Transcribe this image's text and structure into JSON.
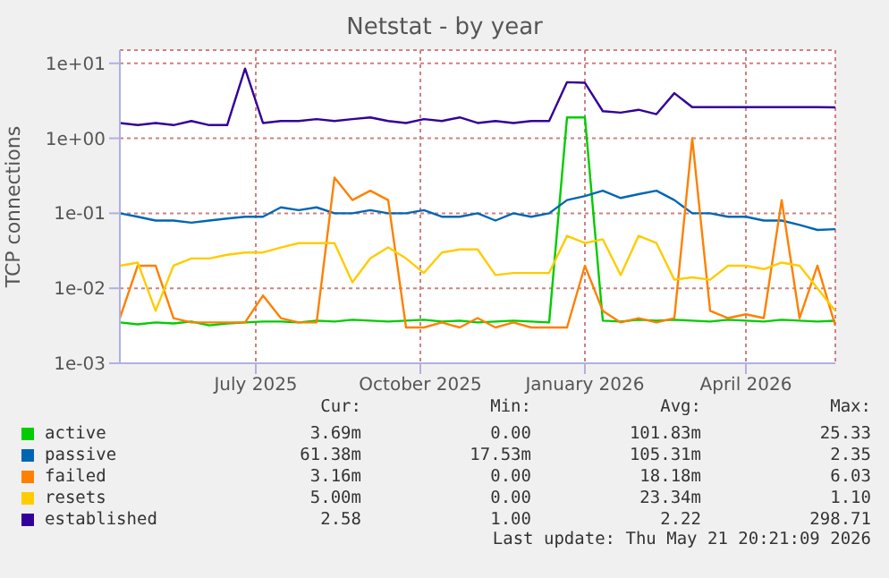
{
  "chart_data": {
    "type": "line",
    "title": "Netstat - by year",
    "ylabel": "TCP connections",
    "log": "y",
    "grid": true,
    "legend": "bottom",
    "x": [
      "2025-04-16",
      "2025-04-26",
      "2025-05-06",
      "2025-05-16",
      "2025-05-26",
      "2025-06-05",
      "2025-06-15",
      "2025-06-25",
      "2025-07-05",
      "2025-07-15",
      "2025-07-25",
      "2025-08-04",
      "2025-08-14",
      "2025-08-24",
      "2025-09-03",
      "2025-09-13",
      "2025-09-23",
      "2025-10-03",
      "2025-10-13",
      "2025-10-23",
      "2025-11-02",
      "2025-11-12",
      "2025-11-22",
      "2025-12-02",
      "2025-12-12",
      "2025-12-22",
      "2026-01-01",
      "2026-01-11",
      "2026-01-21",
      "2026-01-31",
      "2026-02-10",
      "2026-02-20",
      "2026-03-02",
      "2026-03-12",
      "2026-03-22",
      "2026-04-01",
      "2026-04-11",
      "2026-04-21",
      "2026-05-01",
      "2026-05-11",
      "2026-05-21"
    ],
    "xlim": [
      "2025-04-16",
      "2026-05-21"
    ],
    "xticks": [
      {
        "value": "2025-07-01",
        "label": "July 2025"
      },
      {
        "value": "2025-10-01",
        "label": "October 2025"
      },
      {
        "value": "2026-01-01",
        "label": "January 2026"
      },
      {
        "value": "2026-04-01",
        "label": "April 2026"
      }
    ],
    "ylim": [
      0.001,
      15
    ],
    "yticks": [
      {
        "value": 0.001,
        "label": "1e-03"
      },
      {
        "value": 0.01,
        "label": "1e-02"
      },
      {
        "value": 0.1,
        "label": "1e-01"
      },
      {
        "value": 1,
        "label": "1e+00"
      },
      {
        "value": 10,
        "label": "1e+01"
      }
    ],
    "series": [
      {
        "name": "active",
        "color": "#00cc00",
        "values": [
          0.0035,
          0.0033,
          0.0035,
          0.0034,
          0.0036,
          0.0032,
          0.0034,
          0.0035,
          0.0036,
          0.0036,
          0.0035,
          0.0037,
          0.0036,
          0.0038,
          0.0037,
          0.0036,
          0.0037,
          0.0038,
          0.0036,
          0.0037,
          0.0035,
          0.0036,
          0.0037,
          0.0036,
          0.0035,
          1.9,
          1.9,
          0.0037,
          0.0036,
          0.0038,
          0.0037,
          0.0038,
          0.0037,
          0.0036,
          0.0038,
          0.0037,
          0.0036,
          0.0038,
          0.0037,
          0.0036,
          0.00369
        ]
      },
      {
        "name": "passive",
        "color": "#0066b3",
        "values": [
          0.1,
          0.09,
          0.08,
          0.08,
          0.075,
          0.08,
          0.085,
          0.09,
          0.09,
          0.12,
          0.11,
          0.12,
          0.1,
          0.1,
          0.11,
          0.1,
          0.1,
          0.11,
          0.09,
          0.09,
          0.1,
          0.08,
          0.1,
          0.09,
          0.1,
          0.15,
          0.17,
          0.2,
          0.16,
          0.18,
          0.2,
          0.15,
          0.1,
          0.1,
          0.09,
          0.09,
          0.08,
          0.08,
          0.07,
          0.06,
          0.0614
        ]
      },
      {
        "name": "failed",
        "color": "#ff8000",
        "values": [
          0.004,
          0.02,
          0.02,
          0.004,
          0.0035,
          0.0035,
          0.0035,
          0.0035,
          0.008,
          0.004,
          0.0035,
          0.0035,
          0.3,
          0.15,
          0.2,
          0.15,
          0.003,
          0.003,
          0.0035,
          0.003,
          0.004,
          0.003,
          0.0035,
          0.003,
          0.003,
          0.003,
          0.02,
          0.005,
          0.0035,
          0.004,
          0.0035,
          0.004,
          1.0,
          0.005,
          0.004,
          0.0045,
          0.004,
          0.15,
          0.004,
          0.02,
          0.00316
        ]
      },
      {
        "name": "resets",
        "color": "#ffcc00",
        "values": [
          0.02,
          0.022,
          0.005,
          0.02,
          0.025,
          0.025,
          0.028,
          0.03,
          0.03,
          0.035,
          0.04,
          0.04,
          0.04,
          0.012,
          0.025,
          0.035,
          0.025,
          0.016,
          0.03,
          0.033,
          0.033,
          0.015,
          0.016,
          0.016,
          0.016,
          0.05,
          0.04,
          0.045,
          0.015,
          0.05,
          0.04,
          0.013,
          0.014,
          0.013,
          0.02,
          0.02,
          0.018,
          0.022,
          0.02,
          0.01,
          0.005
        ]
      },
      {
        "name": "established",
        "color": "#330099",
        "values": [
          1.6,
          1.5,
          1.6,
          1.5,
          1.7,
          1.5,
          1.5,
          8.5,
          1.6,
          1.7,
          1.7,
          1.8,
          1.7,
          1.8,
          1.9,
          1.7,
          1.6,
          1.8,
          1.7,
          1.9,
          1.6,
          1.7,
          1.6,
          1.7,
          1.7,
          5.6,
          5.5,
          2.3,
          2.2,
          2.4,
          2.1,
          4.0,
          2.6,
          2.6,
          2.6,
          2.6,
          2.6,
          2.6,
          2.6,
          2.6,
          2.58
        ]
      }
    ],
    "annotations": [
      "Cur:",
      "Min:",
      "Avg:",
      "Max:",
      "3.69m",
      "0.00",
      "101.83m",
      "25.33",
      "61.38m",
      "17.53m",
      "105.31m",
      "2.35",
      "3.16m",
      "0.00",
      "18.18m",
      "6.03",
      "5.00m",
      "0.00",
      "23.34m",
      "1.10",
      "2.58",
      "1.00",
      "2.22",
      "298.71",
      "Last update: Thu May 21 20:21:09 2026"
    ]
  }
}
